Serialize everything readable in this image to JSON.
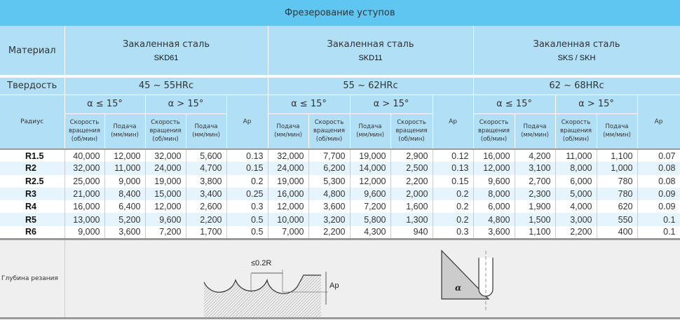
{
  "title": "Фрезерование уступов",
  "material_label": "Материал",
  "hardness_label": "Твердость",
  "radius_label": "Радиус",
  "depth_label": "Глубина резания",
  "ap_label": "Ap",
  "speed_label": "Скорость вращения (об/мин)",
  "feed_label": "Подача (мм/мин)",
  "alpha_le": "α ≤ 15°",
  "alpha_gt": "α > 15°",
  "materials": [
    {
      "name": "Закаленная сталь",
      "code": "SKD61",
      "hardness": "45 ~ 55HRc",
      "sub": [
        "Скорость вращения (об/мин)",
        "Подача (мм/мин)",
        "Скорость вращения (об/мин)",
        "Подача (мм/мин)"
      ]
    },
    {
      "name": "Закаленная сталь",
      "code": "SKD11",
      "hardness": "55 ~ 62HRc",
      "sub": [
        "Подача (мм/мин)",
        "Скорость вращения (об/мин)",
        "Подача (мм/мин)",
        "Скорость вращения (об/мин)"
      ]
    },
    {
      "name": "Закаленная сталь",
      "code": "SKS / SKH",
      "hardness": "62 ~ 68HRc",
      "sub": [
        "Скорость вращения (об/мин)",
        "Подача (мм/мин)",
        "Скорость вращения (об/мин)",
        "Подача (мм/мин)"
      ]
    }
  ],
  "rows": [
    [
      "R1.5",
      "40,000",
      "12,000",
      "32,000",
      "5,600",
      "0.13",
      "32,000",
      "7,700",
      "19,000",
      "2,900",
      "0.12",
      "16,000",
      "4,200",
      "11,000",
      "1,100",
      "0.07"
    ],
    [
      "R2",
      "32,000",
      "11,000",
      "24,000",
      "4,700",
      "0.15",
      "24,000",
      "6,200",
      "14,000",
      "2,500",
      "0.13",
      "12,000",
      "3,100",
      "8,000",
      "1,000",
      "0.08"
    ],
    [
      "R2.5",
      "25,000",
      "9,000",
      "19,000",
      "3,800",
      "0.2",
      "19,000",
      "5,300",
      "12,000",
      "2,200",
      "0.15",
      "9,600",
      "2,700",
      "6,000",
      "780",
      "0.08"
    ],
    [
      "R3",
      "21,000",
      "8,400",
      "15,000",
      "3,400",
      "0.25",
      "16,000",
      "4,800",
      "9,600",
      "2,000",
      "0.2",
      "8,000",
      "2,300",
      "5,000",
      "780",
      "0.09"
    ],
    [
      "R4",
      "16,000",
      "6,400",
      "12,000",
      "2,600",
      "0.3",
      "12,000",
      "3,600",
      "7,200",
      "1,600",
      "0.2",
      "6,000",
      "1,900",
      "4,000",
      "620",
      "0.09"
    ],
    [
      "R5",
      "13,000",
      "5,200",
      "9,600",
      "2,200",
      "0.5",
      "10,000",
      "3,200",
      "5,800",
      "1,300",
      "0.2",
      "4,800",
      "1,500",
      "3,000",
      "550",
      "0.1"
    ],
    [
      "R6",
      "9,000",
      "3,600",
      "7,200",
      "1,700",
      "0.5",
      "7,000",
      "2,200",
      "4,300",
      "940",
      "0.3",
      "3,600",
      "1,100",
      "2,200",
      "400",
      "0.1"
    ]
  ],
  "diagram": {
    "step_label": "≤0.2R",
    "ap": "Ap",
    "angle": "α"
  },
  "colors": {
    "title_bg": "#5ec6f1",
    "header_bg": "#b1e0f6",
    "row_alt": "#e6f5fd"
  }
}
